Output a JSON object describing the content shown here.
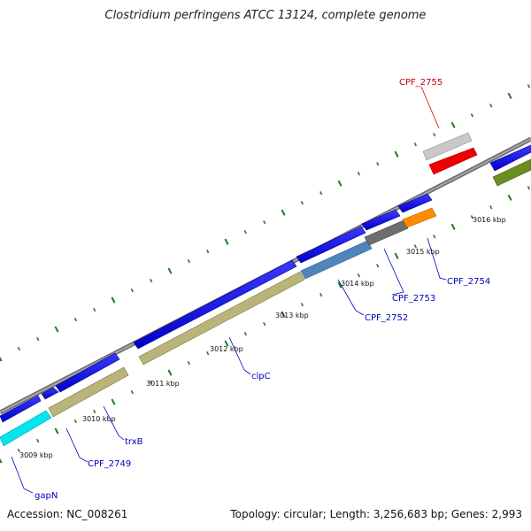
{
  "title": "Clostridium perfringens ATCC 13124, complete genome",
  "accession": "Accession: NC_008261",
  "summary": "Topology: circular; Length: 3,256,683 bp; Genes: 2,993",
  "colors": {
    "backbone": "#808080",
    "tick": "#1f7a1f",
    "gene_forward": "#0000ee",
    "label_blue": "#0000bb",
    "label_red": "#cc0000"
  },
  "kbp_labels": [
    "3009 kbp",
    "3010 kbp",
    "3011 kbp",
    "3012 kbp",
    "3013 kbp",
    "3014 kbp",
    "3015 kbp",
    "3016 kbp"
  ],
  "gene_labels": [
    {
      "id": "gapN",
      "text": "gapN",
      "color": "#0000bb"
    },
    {
      "id": "cpf2749",
      "text": "CPF_2749",
      "color": "#0000bb"
    },
    {
      "id": "trxb",
      "text": "trxB",
      "color": "#0000bb"
    },
    {
      "id": "clpc",
      "text": "clpC",
      "color": "#0000bb"
    },
    {
      "id": "cpf2752",
      "text": "CPF_2752",
      "color": "#0000bb"
    },
    {
      "id": "cpf2753",
      "text": "CPF_2753",
      "color": "#0000bb"
    },
    {
      "id": "cpf2754",
      "text": "CPF_2754",
      "color": "#0000bb"
    },
    {
      "id": "cpf2755",
      "text": "CPF_2755",
      "color": "#cc0000"
    }
  ],
  "feature_colors": {
    "olive": "#b8b47a",
    "cyan": "#00e5ee",
    "steel": "#4f86b8",
    "darkgray": "#6e6e6e",
    "orange": "#ff8c00",
    "lightgray": "#c8c8c8",
    "red": "#ee0000",
    "green": "#6b8e23"
  }
}
